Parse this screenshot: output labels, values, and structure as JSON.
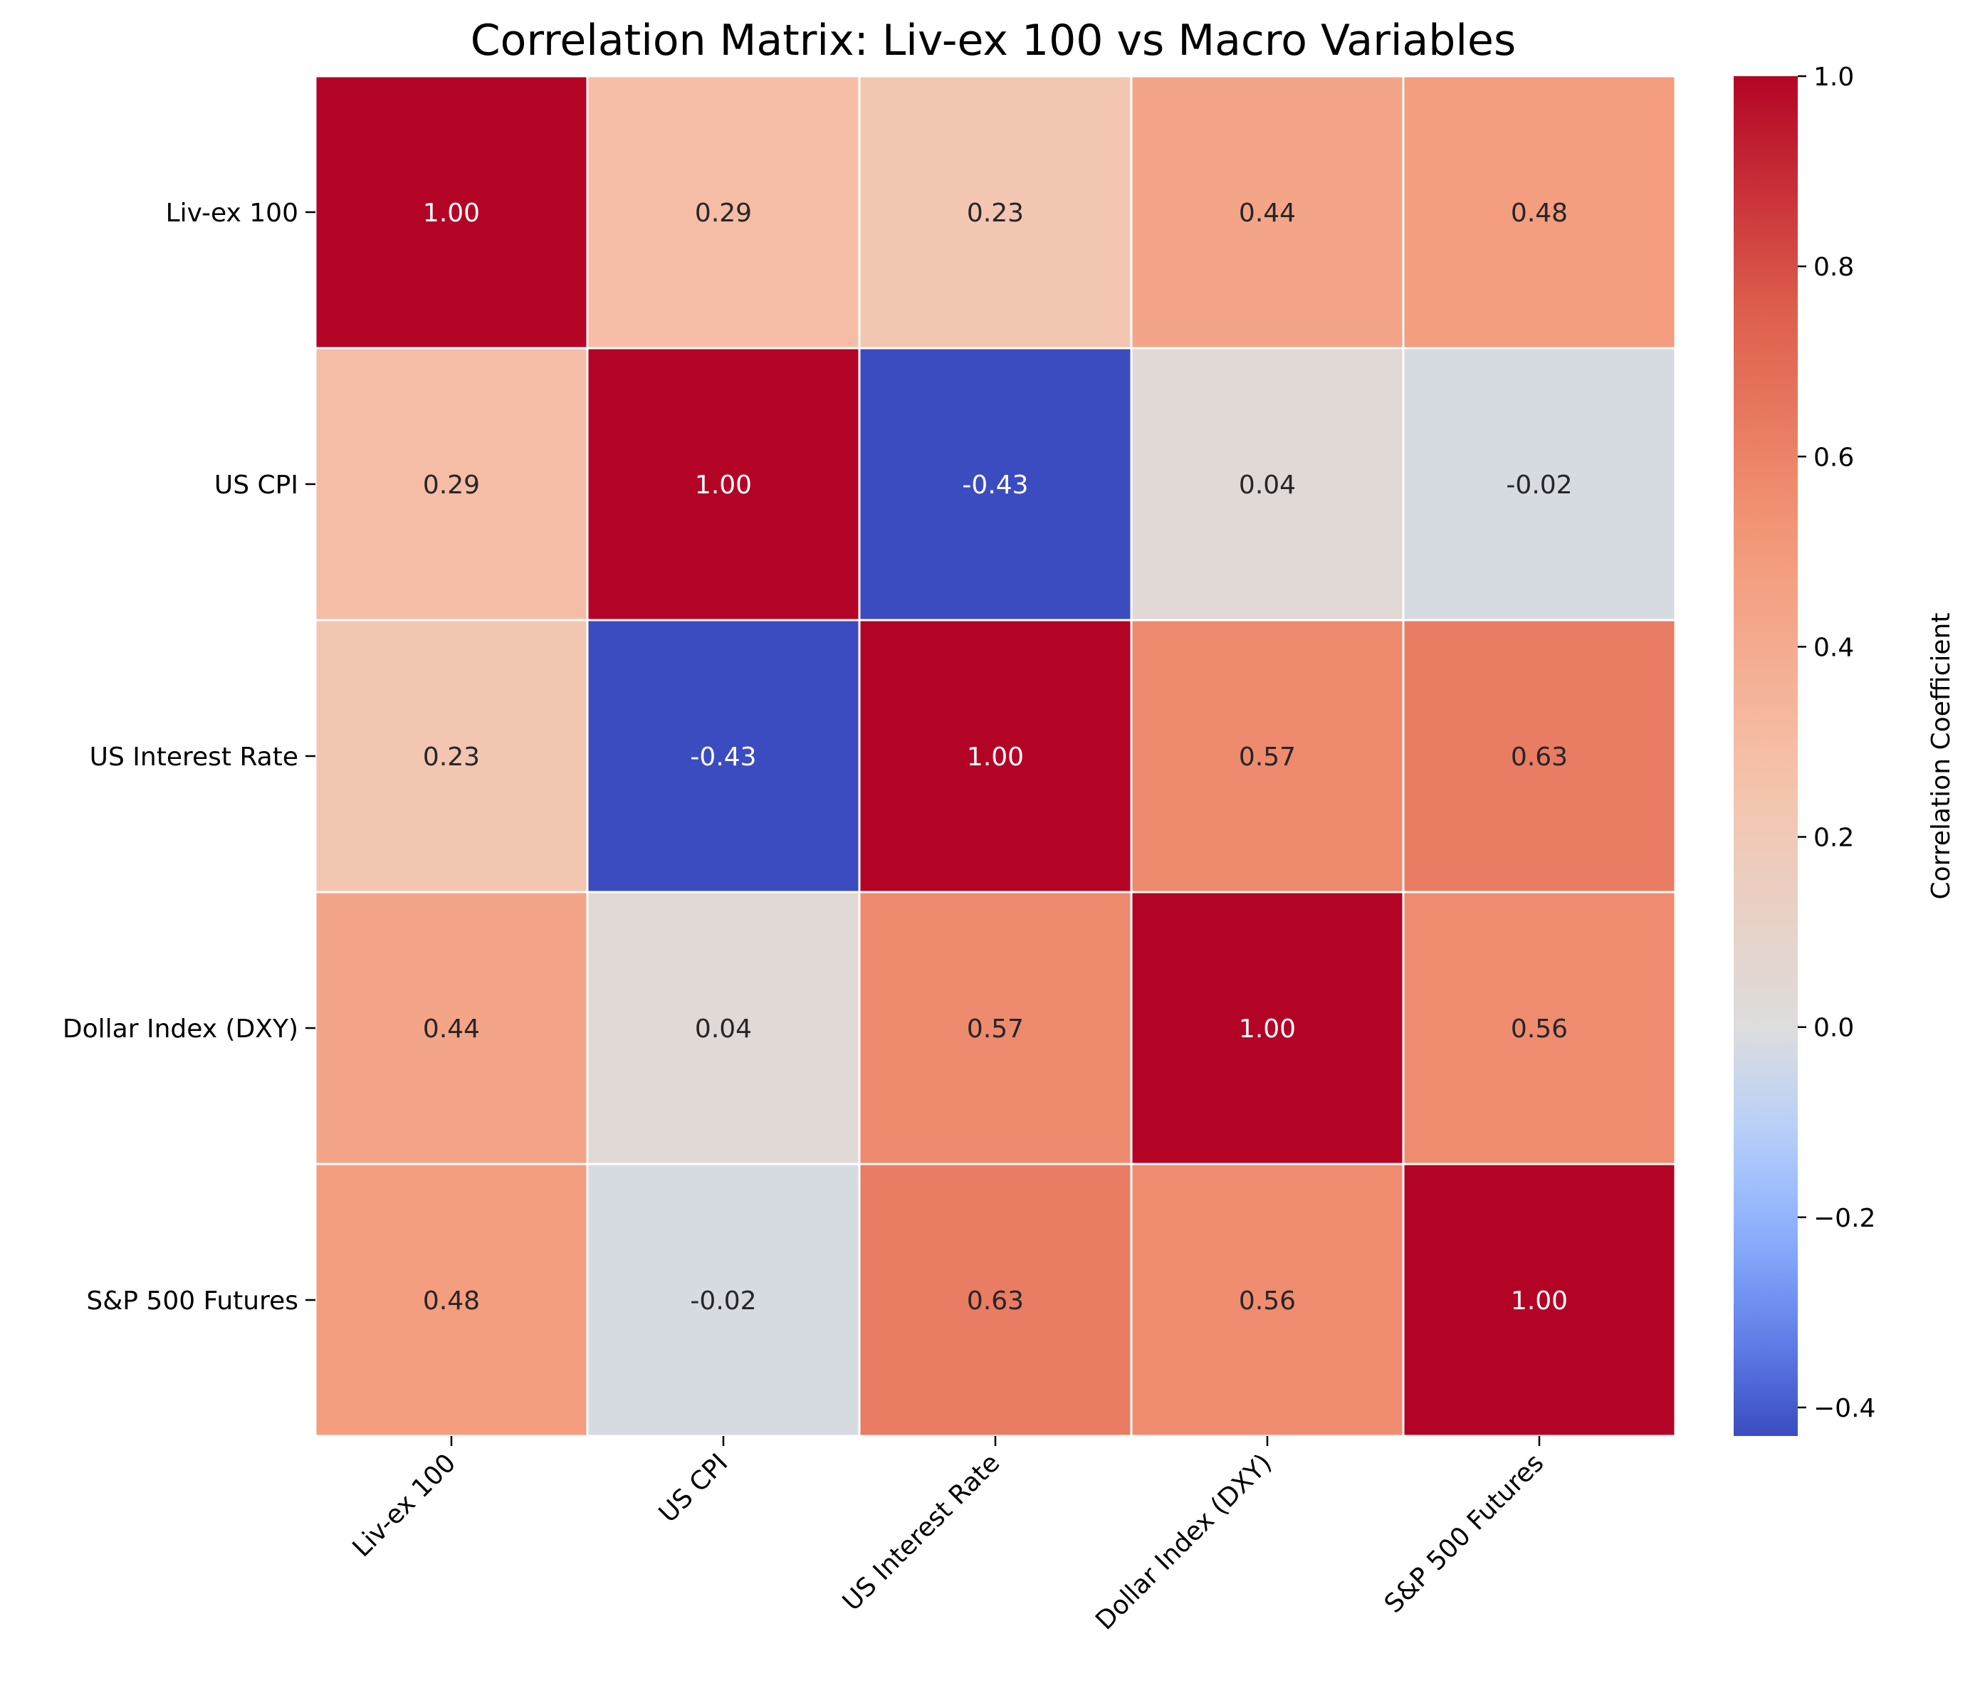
{
  "chart_data": {
    "type": "heatmap",
    "title": "Correlation Matrix: Liv-ex 100 vs Macro Variables",
    "row_labels": [
      "Liv-ex 100",
      "US CPI",
      "US Interest Rate",
      "Dollar Index (DXY)",
      "S&P 500 Futures"
    ],
    "col_labels": [
      "Liv-ex 100",
      "US CPI",
      "US Interest Rate",
      "Dollar Index (DXY)",
      "S&P 500 Futures"
    ],
    "values": [
      [
        1.0,
        0.29,
        0.23,
        0.44,
        0.48
      ],
      [
        0.29,
        1.0,
        -0.43,
        0.04,
        -0.02
      ],
      [
        0.23,
        -0.43,
        1.0,
        0.57,
        0.63
      ],
      [
        0.44,
        0.04,
        0.57,
        1.0,
        0.56
      ],
      [
        0.48,
        -0.02,
        0.63,
        0.56,
        1.0
      ]
    ],
    "value_format": "2 decimals",
    "colorbar": {
      "label": "Correlation Coefficient",
      "range": [
        -0.43,
        1.0
      ],
      "ticks": [
        1.0,
        0.8,
        0.6,
        0.4,
        0.2,
        0.0,
        -0.2,
        -0.4
      ],
      "tick_labels": [
        "1.0",
        "0.8",
        "0.6",
        "0.4",
        "0.2",
        "0.0",
        "−0.2",
        "−0.4"
      ]
    },
    "colormap": "coolwarm",
    "grid_lines_between_cells": true,
    "x_tick_label_rotation": "45 degrees"
  }
}
